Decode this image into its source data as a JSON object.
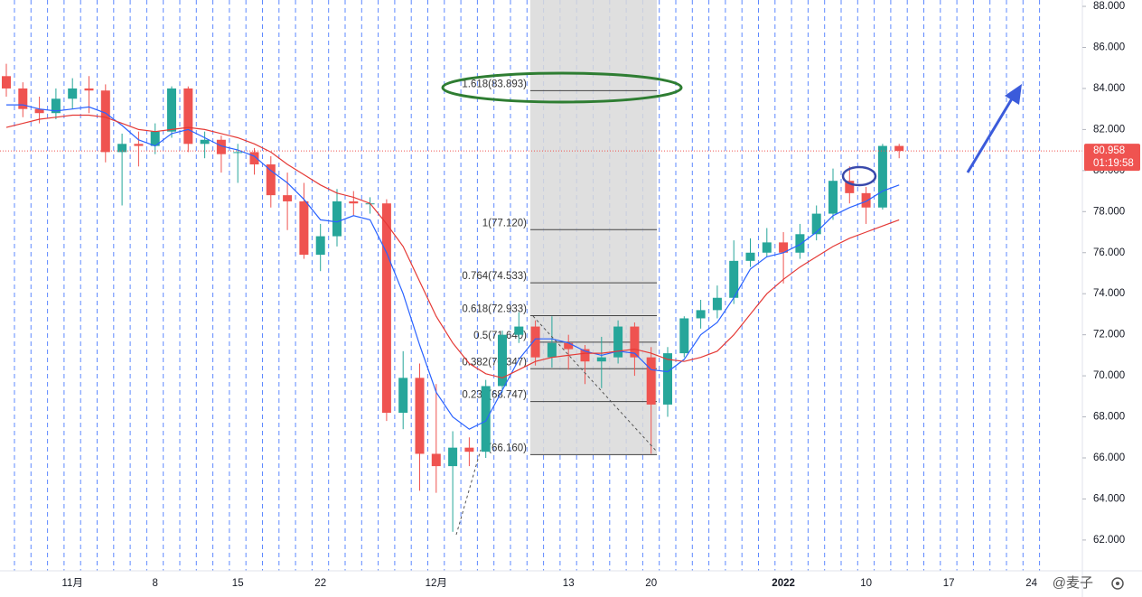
{
  "chart_data": {
    "type": "candlestick",
    "categories": [
      null,
      null,
      null,
      null,
      "11月",
      null,
      null,
      null,
      null,
      "8",
      null,
      null,
      null,
      null,
      "15",
      null,
      null,
      null,
      null,
      "22",
      null,
      null,
      null,
      null,
      null,
      null,
      "12月",
      null,
      null,
      null,
      null,
      null,
      null,
      null,
      "13",
      null,
      null,
      null,
      null,
      "20",
      null,
      null,
      null,
      null,
      null,
      null,
      null,
      "2022",
      null,
      null,
      null,
      null,
      "10",
      null,
      null,
      null,
      null,
      "17",
      null,
      null,
      null,
      null,
      "24"
    ],
    "open": [
      84.6,
      84.0,
      83.0,
      82.8,
      83.5,
      84.0,
      83.9,
      80.9,
      81.3,
      81.2,
      81.9,
      84.0,
      81.3,
      81.5,
      80.9,
      80.9,
      80.3,
      78.8,
      78.5,
      75.9,
      76.8,
      78.5,
      78.4,
      78.4,
      68.2,
      69.9,
      66.2,
      65.6,
      66.5,
      66.3,
      69.5,
      72.0,
      72.4,
      70.9,
      71.6,
      71.3,
      70.7,
      70.9,
      72.4,
      70.9,
      68.6,
      71.1,
      72.8,
      73.2,
      73.8,
      75.6,
      76.0,
      76.5,
      76.0,
      76.9,
      77.9,
      79.5,
      78.9,
      78.2,
      81.2,
      null,
      null,
      null,
      null,
      null,
      null,
      null,
      null
    ],
    "high": [
      85.2,
      84.3,
      83.6,
      84.0,
      84.5,
      84.6,
      84.2,
      81.8,
      81.9,
      82.3,
      84.1,
      84.1,
      81.9,
      81.7,
      81.3,
      81.1,
      80.7,
      79.9,
      79.4,
      77.4,
      79.1,
      79.0,
      78.7,
      78.6,
      71.2,
      70.6,
      69.6,
      67.3,
      67.0,
      69.8,
      72.2,
      73.1,
      72.7,
      72.9,
      72.0,
      71.5,
      71.9,
      72.7,
      72.6,
      71.4,
      71.4,
      72.9,
      73.7,
      74.4,
      76.6,
      76.7,
      77.2,
      77.0,
      77.4,
      78.3,
      80.1,
      80.2,
      79.2,
      81.3,
      81.3,
      null,
      null,
      null,
      null,
      null,
      null,
      null,
      null
    ],
    "low": [
      83.6,
      82.6,
      82.3,
      82.5,
      83.0,
      82.8,
      80.4,
      78.3,
      80.2,
      80.8,
      81.6,
      80.9,
      80.6,
      79.9,
      79.4,
      79.8,
      78.2,
      77.1,
      75.7,
      75.1,
      76.3,
      77.8,
      77.9,
      67.8,
      67.4,
      64.4,
      64.3,
      62.4,
      65.6,
      66.0,
      69.2,
      71.6,
      70.5,
      70.4,
      70.3,
      69.6,
      69.4,
      70.6,
      70.0,
      66.2,
      68.0,
      70.9,
      72.3,
      72.8,
      73.5,
      75.3,
      75.8,
      74.5,
      75.7,
      76.6,
      77.6,
      78.4,
      77.4,
      78.1,
      80.6,
      null,
      null,
      null,
      null,
      null,
      null,
      null,
      null
    ],
    "close": [
      84.0,
      83.0,
      82.8,
      83.5,
      84.0,
      83.9,
      80.9,
      81.3,
      81.2,
      81.9,
      84.0,
      81.3,
      81.5,
      80.8,
      80.9,
      80.3,
      78.8,
      78.5,
      75.9,
      76.8,
      78.5,
      78.4,
      78.4,
      68.2,
      69.9,
      66.2,
      65.6,
      66.5,
      66.3,
      69.5,
      72.0,
      72.4,
      70.9,
      71.6,
      71.3,
      70.7,
      70.9,
      72.4,
      70.9,
      68.6,
      71.1,
      72.8,
      73.2,
      73.8,
      75.6,
      76.0,
      76.5,
      76.0,
      76.9,
      77.9,
      79.5,
      78.9,
      78.2,
      81.2,
      80.958,
      null,
      null,
      null,
      null,
      null,
      null,
      null,
      null
    ],
    "up_color": "#26a69a",
    "down_color": "#ef5350",
    "moving_averages": [
      {
        "color": "#2962ff",
        "values": [
          83.2,
          83.2,
          83.0,
          82.9,
          83.0,
          83.1,
          82.8,
          82.2,
          81.5,
          81.2,
          81.8,
          82.0,
          81.6,
          81.2,
          81.0,
          80.7,
          80.0,
          79.4,
          78.6,
          77.6,
          77.5,
          77.8,
          77.6,
          76.0,
          74.0,
          71.5,
          69.2,
          68.0,
          67.4,
          67.8,
          69.3,
          70.8,
          71.8,
          71.8,
          71.6,
          71.2,
          71.0,
          71.2,
          71.1,
          70.3,
          70.2,
          70.8,
          72.0,
          72.6,
          73.8,
          75.2,
          75.8,
          76.0,
          76.4,
          77.0,
          77.8,
          78.2,
          78.5,
          79.0,
          79.3,
          null,
          null,
          null,
          null,
          null,
          null,
          null,
          null
        ]
      },
      {
        "color": "#e53935",
        "values": [
          82.1,
          82.3,
          82.5,
          82.6,
          82.7,
          82.7,
          82.6,
          82.3,
          82.0,
          81.9,
          82.0,
          82.1,
          82.0,
          81.8,
          81.6,
          81.3,
          80.9,
          80.3,
          79.8,
          79.3,
          78.9,
          78.7,
          78.4,
          77.4,
          76.3,
          74.6,
          72.9,
          71.6,
          70.6,
          70.1,
          69.9,
          70.3,
          70.7,
          70.9,
          71.0,
          71.1,
          71.1,
          71.2,
          71.3,
          71.1,
          70.8,
          70.7,
          70.9,
          71.2,
          72.0,
          73.0,
          74.0,
          74.7,
          75.3,
          75.8,
          76.3,
          76.7,
          77.0,
          77.3,
          77.6,
          null,
          null,
          null,
          null,
          null,
          null,
          null,
          null
        ]
      }
    ],
    "ylim": [
      60.5,
      88.31
    ],
    "yticks": [
      {
        "value": 62,
        "label": "62.000"
      },
      {
        "value": 64,
        "label": "64.000"
      },
      {
        "value": 66,
        "label": "66.000"
      },
      {
        "value": 68,
        "label": "68.000"
      },
      {
        "value": 70,
        "label": "70.000"
      },
      {
        "value": 72,
        "label": "72.000"
      },
      {
        "value": 74,
        "label": "74.000"
      },
      {
        "value": 76,
        "label": "76.000"
      },
      {
        "value": 78,
        "label": "78.000"
      },
      {
        "value": 80,
        "label": "80.000"
      },
      {
        "value": 82,
        "label": "82.000"
      },
      {
        "value": 84,
        "label": "84.000"
      },
      {
        "value": 86,
        "label": "86.000"
      },
      {
        "value": 88,
        "label": "88.000"
      }
    ],
    "fib_levels": [
      {
        "label": "1.618(83.893)",
        "value": 83.893
      },
      {
        "label": "1(77.120)",
        "value": 77.12
      },
      {
        "label": "0.764(74.533)",
        "value": 74.533
      },
      {
        "label": "0.618(72.933)",
        "value": 72.933
      },
      {
        "label": "0.5(71.640)",
        "value": 71.64
      },
      {
        "label": "0.382(70.347)",
        "value": 70.347
      },
      {
        "label": "0.236(68.747)",
        "value": 68.747
      },
      {
        "label": "0(66.160)",
        "value": 66.16
      }
    ],
    "last_price": {
      "value": 80.958,
      "label": "80.958"
    },
    "countdown": "01:19:58",
    "watermark": "@麦子"
  }
}
